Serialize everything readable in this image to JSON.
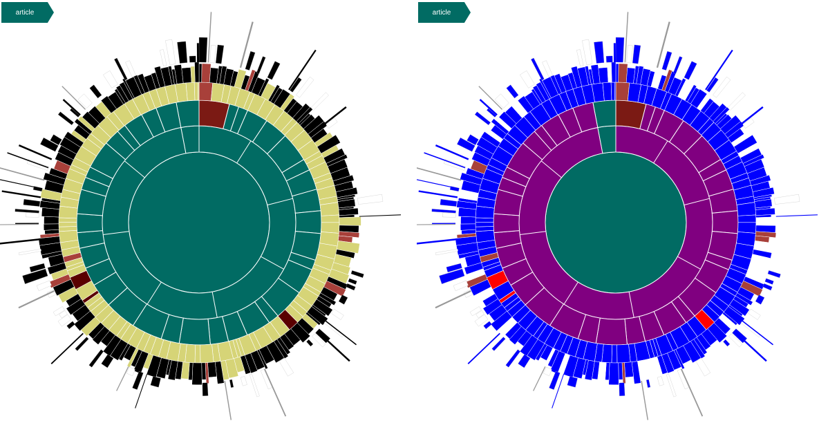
{
  "panels": [
    {
      "breadcrumb": "article",
      "colors": {
        "root": "#016b63",
        "ring1": "#016b63",
        "ring2_main": "#016b63",
        "ring2_alt": "#7b1a14",
        "ring3_main": "#d6d477",
        "ring3_alt": "#a8403a",
        "ring4_main": "#000000",
        "ring4_alt": "#d6d477",
        "ring5_main": "#000000",
        "ring5_alt": "#ffffff",
        "accent_dark": "#5a0000",
        "accent_brown": "#a0522d",
        "stroke": "#ffffff"
      }
    },
    {
      "breadcrumb": "article",
      "colors": {
        "root": "#016b63",
        "ring1": "#800080",
        "ring2_main": "#800080",
        "ring2_alt": "#7b1a14",
        "ring3_main": "#0000ff",
        "ring3_alt": "#a8403a",
        "ring4_main": "#0000ff",
        "ring4_alt": "#ffffff",
        "ring5_main": "#0000ff",
        "ring5_alt": "#ffffff",
        "accent_dark": "#ff0000",
        "accent_brown": "#a0522d",
        "stroke": "#ffffff"
      }
    }
  ]
}
